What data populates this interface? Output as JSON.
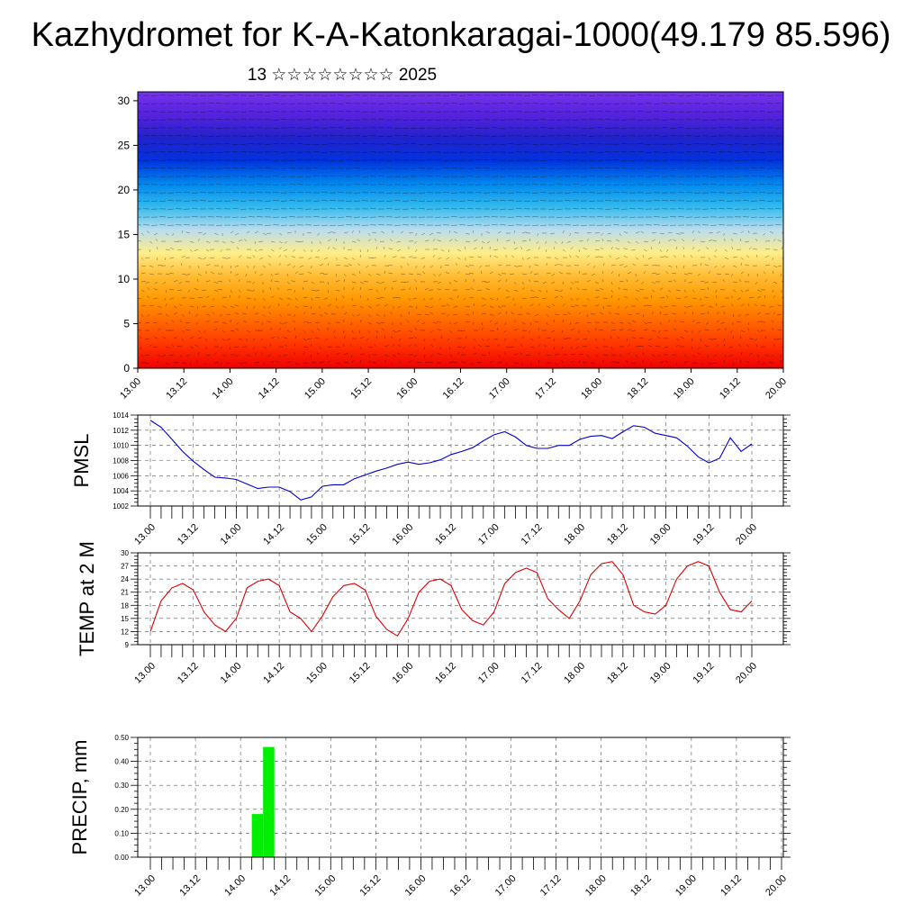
{
  "header": {
    "title": "Kazhydromet for K-A-Katonkaragai-1000(49.179 85.596)",
    "subtitle": "13 ☆☆☆☆☆☆☆☆ 2025"
  },
  "colors": {
    "pmsl_line": "#0000cc",
    "temp_line": "#dd0000",
    "precip_bar": "#00ee00",
    "colormap": [
      "#ee0000",
      "#ff3300",
      "#ff6600",
      "#ff9900",
      "#ffbb33",
      "#ffee88",
      "#bbddee",
      "#33bbee",
      "#0088ee",
      "#0033dd",
      "#2222cc",
      "#5522dd",
      "#7733ee"
    ]
  },
  "chart_data": [
    {
      "type": "heatmap",
      "title": "",
      "xlabel": "",
      "ylabel": "",
      "x_ticks": [
        "13.00",
        "13.12",
        "14.00",
        "14.12",
        "15.00",
        "15.12",
        "16.00",
        "16.12",
        "17.00",
        "17.12",
        "18.00",
        "18.12",
        "19.00",
        "19.12",
        "20.00"
      ],
      "y_ticks": [
        "0",
        "5",
        "10",
        "15",
        "20",
        "25",
        "30"
      ],
      "ylim": [
        0,
        31
      ],
      "overlay": "wind-vectors"
    },
    {
      "type": "line",
      "ylabel": "PMSL",
      "ylim": [
        1002,
        1014
      ],
      "y_ticks": [
        "1002",
        "1004",
        "1006",
        "1008",
        "1010",
        "1012",
        "1014"
      ],
      "x_ticks": [
        "13.00",
        "13.12",
        "14.00",
        "14.12",
        "15.00",
        "15.12",
        "16.00",
        "16.12",
        "17.00",
        "17.12",
        "18.00",
        "18.12",
        "19.00",
        "19.12",
        "20.00"
      ],
      "grid": true,
      "values": [
        1013.3,
        1012.4,
        1010.8,
        1009.2,
        1007.9,
        1006.8,
        1005.8,
        1005.7,
        1005.5,
        1004.9,
        1004.3,
        1004.5,
        1004.5,
        1003.9,
        1002.8,
        1003.2,
        1004.6,
        1004.8,
        1004.8,
        1005.6,
        1006.1,
        1006.6,
        1007.0,
        1007.5,
        1007.8,
        1007.5,
        1007.7,
        1008.1,
        1008.8,
        1009.2,
        1009.7,
        1010.6,
        1011.4,
        1011.8,
        1011.1,
        1010.0,
        1009.6,
        1009.6,
        1010.0,
        1010.0,
        1010.8,
        1011.2,
        1011.3,
        1010.9,
        1011.8,
        1012.6,
        1012.4,
        1011.6,
        1011.3,
        1011.0,
        1009.9,
        1008.5,
        1007.7,
        1008.3,
        1011.0,
        1009.2,
        1010.2
      ]
    },
    {
      "type": "line",
      "ylabel": "TEMP at 2 M",
      "ylim": [
        9,
        30
      ],
      "y_ticks": [
        "9",
        "12",
        "15",
        "18",
        "21",
        "24",
        "27",
        "30"
      ],
      "x_ticks": [
        "13.00",
        "13.12",
        "14.00",
        "14.12",
        "15.00",
        "15.12",
        "16.00",
        "16.12",
        "17.00",
        "17.12",
        "18.00",
        "18.12",
        "19.00",
        "19.12",
        "20.00"
      ],
      "grid": true,
      "values": [
        12,
        19,
        22,
        23,
        21.5,
        16.5,
        13.5,
        12,
        15,
        22,
        23.5,
        24,
        22.5,
        16.5,
        15,
        12,
        15.5,
        20,
        22.5,
        23,
        21.5,
        15.5,
        12.5,
        11,
        15,
        21,
        23.5,
        24,
        22.5,
        17,
        14.5,
        13.5,
        16.5,
        23,
        25.5,
        26.5,
        25.5,
        19.5,
        17,
        15,
        19,
        25,
        27.5,
        28,
        25,
        18,
        16.5,
        16,
        18,
        24,
        27,
        28,
        27,
        21,
        17,
        16.5,
        19
      ]
    },
    {
      "type": "bar",
      "ylabel": "PRECIP, mm",
      "ylim": [
        0,
        0.5
      ],
      "y_ticks": [
        "0.00",
        "0.10",
        "0.20",
        "0.30",
        "0.40",
        "0.50"
      ],
      "x_ticks": [
        "13.00",
        "13.12",
        "14.00",
        "14.12",
        "15.00",
        "15.12",
        "16.00",
        "16.12",
        "17.00",
        "17.12",
        "18.00",
        "18.12",
        "19.00",
        "19.12",
        "20.00"
      ],
      "grid": true,
      "bars": [
        {
          "step": 9,
          "value": 0.18
        },
        {
          "step": 10,
          "value": 0.46
        }
      ]
    }
  ]
}
